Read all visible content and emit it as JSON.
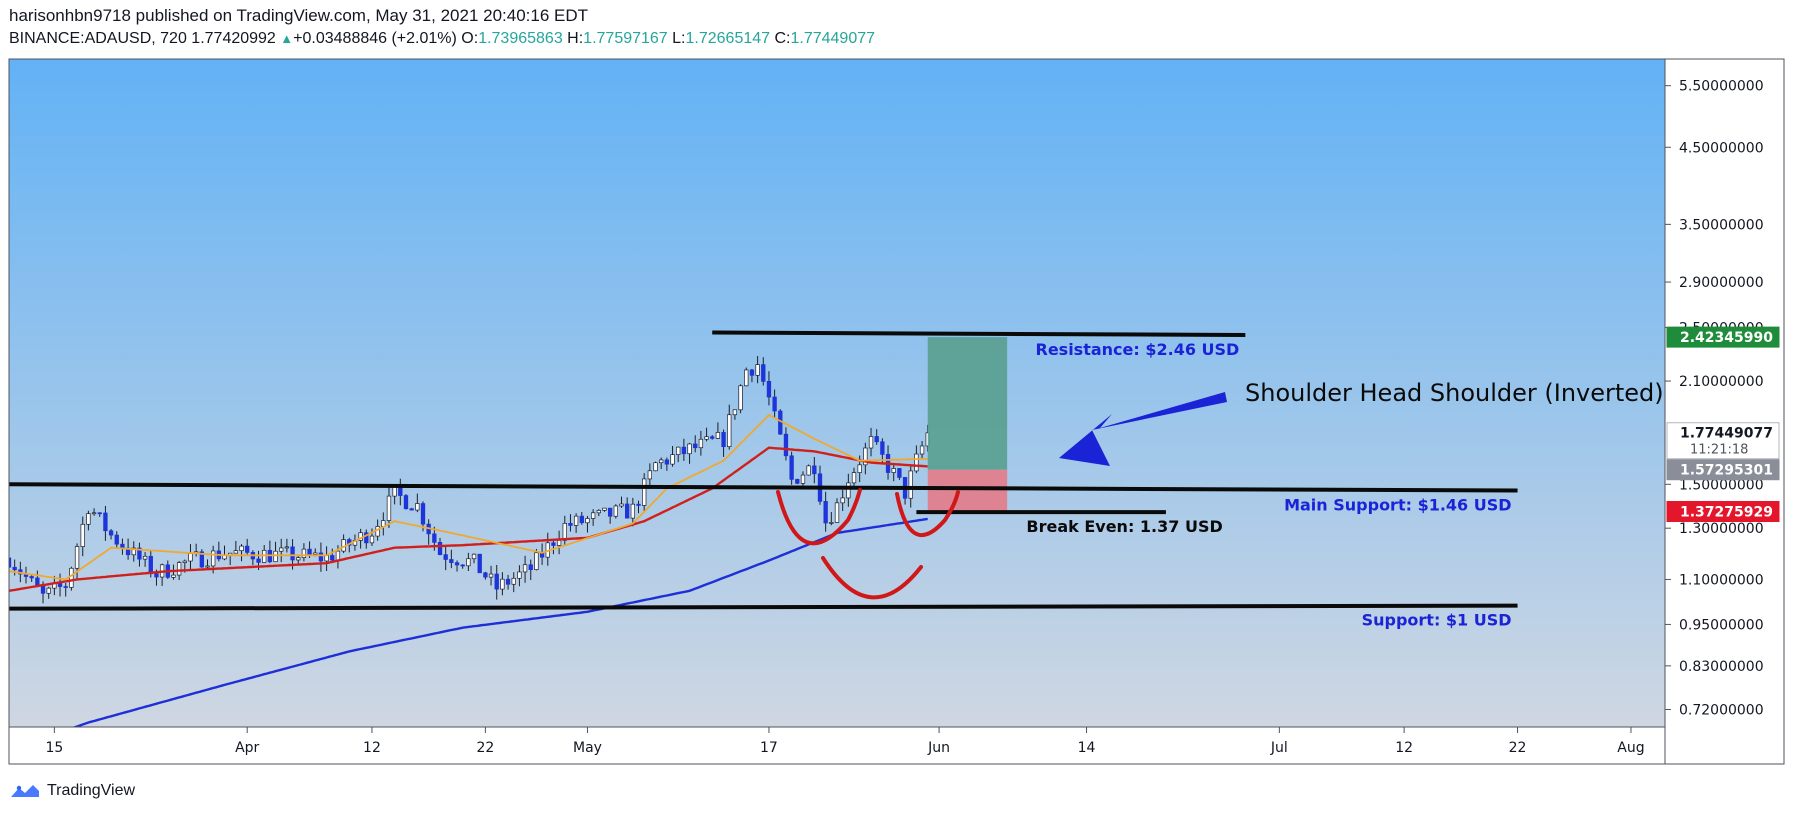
{
  "header": {
    "published_line": "harisonhbn9718 published on TradingView.com, May 31, 2021 20:40:16 EDT",
    "symbol": "BINANCE:ADAUSD, 720",
    "last": "1.77420992",
    "change_arrow": "▲",
    "change": "+0.03488846 (+2.01%)",
    "o_label": "O:",
    "o": "1.73965863",
    "h_label": "H:",
    "h": "1.77597167",
    "l_label": "L:",
    "l": "1.72665147",
    "c_label": "C:",
    "c": "1.77449077"
  },
  "footer": {
    "brand": "TradingView",
    "logo_icon": "tradingview-logo-icon"
  },
  "colors": {
    "bg_top": "#62b2f5",
    "bg_bottom": "#cfd7e2",
    "up_candle": "#ffffff",
    "down_candle": "#1e35d8",
    "ema_fast": "#f0a830",
    "ema_mid": "#d0201c",
    "ema_slow": "#1f2fd8",
    "zone_profit": "#5aa090",
    "zone_loss": "#e27d8a",
    "annot_blue": "#1a23d6",
    "neckline_red": "#d01818",
    "price_green": "#1e8c3a",
    "price_red": "#e3162b",
    "price_gray": "#8a8e98"
  },
  "chart_data": {
    "type": "candlestick",
    "symbol": "BINANCE:ADAUSD",
    "interval": "720",
    "y_scale": "log",
    "ylim": [
      0.68,
      6.0
    ],
    "x_range": [
      "2021-03-11",
      "2021-08-04"
    ],
    "y_ticks": [
      {
        "value": 5.5,
        "label": "5.50000000"
      },
      {
        "value": 4.5,
        "label": "4.50000000"
      },
      {
        "value": 3.5,
        "label": "3.50000000"
      },
      {
        "value": 2.9,
        "label": "2.90000000"
      },
      {
        "value": 2.5,
        "label": "2.50000000"
      },
      {
        "value": 2.1,
        "label": "2.10000000"
      },
      {
        "value": 1.5,
        "label": "1.50000000"
      },
      {
        "value": 1.3,
        "label": "1.30000000"
      },
      {
        "value": 1.1,
        "label": "1.10000000"
      },
      {
        "value": 0.95,
        "label": "0.95000000"
      },
      {
        "value": 0.83,
        "label": "0.83000000"
      },
      {
        "value": 0.72,
        "label": "0.72000000"
      }
    ],
    "x_ticks": [
      {
        "date": "2021-03-15",
        "label": "15"
      },
      {
        "date": "2021-04-01",
        "label": "Apr"
      },
      {
        "date": "2021-04-12",
        "label": "12"
      },
      {
        "date": "2021-04-22",
        "label": "22"
      },
      {
        "date": "2021-05-01",
        "label": "May"
      },
      {
        "date": "2021-05-17",
        "label": "17"
      },
      {
        "date": "2021-06-01",
        "label": "Jun"
      },
      {
        "date": "2021-06-14",
        "label": "14"
      },
      {
        "date": "2021-07-01",
        "label": "Jul"
      },
      {
        "date": "2021-07-12",
        "label": "12"
      },
      {
        "date": "2021-07-22",
        "label": "22"
      },
      {
        "date": "2021-08-01",
        "label": "Aug"
      }
    ],
    "price_labels": [
      {
        "value": 2.4234599,
        "label": "2.42345990",
        "style": "green"
      },
      {
        "value": 1.77449077,
        "label": "1.77449077",
        "sub": "11:21:18",
        "style": "white"
      },
      {
        "value": 1.57295301,
        "label": "1.57295301",
        "style": "gray"
      },
      {
        "value": 1.37275929,
        "label": "1.37275929",
        "style": "red"
      }
    ],
    "candle_anchors": [
      [
        "2021-03-11",
        1.18
      ],
      [
        "2021-03-14",
        1.04
      ],
      [
        "2021-03-16",
        1.08
      ],
      [
        "2021-03-18",
        1.4
      ],
      [
        "2021-03-20",
        1.27
      ],
      [
        "2021-03-24",
        1.12
      ],
      [
        "2021-03-27",
        1.17
      ],
      [
        "2021-03-30",
        1.2
      ],
      [
        "2021-04-05",
        1.19
      ],
      [
        "2021-04-08",
        1.18
      ],
      [
        "2021-04-12",
        1.29
      ],
      [
        "2021-04-14",
        1.45
      ],
      [
        "2021-04-16",
        1.4
      ],
      [
        "2021-04-18",
        1.2
      ],
      [
        "2021-04-21",
        1.16
      ],
      [
        "2021-04-23",
        1.07
      ],
      [
        "2021-04-26",
        1.14
      ],
      [
        "2021-04-29",
        1.31
      ],
      [
        "2021-05-03",
        1.36
      ],
      [
        "2021-05-05",
        1.38
      ],
      [
        "2021-05-07",
        1.6
      ],
      [
        "2021-05-10",
        1.68
      ],
      [
        "2021-05-13",
        1.74
      ],
      [
        "2021-05-15",
        2.18
      ],
      [
        "2021-05-16",
        2.22
      ],
      [
        "2021-05-17",
        1.98
      ],
      [
        "2021-05-19",
        1.52
      ],
      [
        "2021-05-21",
        1.6
      ],
      [
        "2021-05-22",
        1.33
      ],
      [
        "2021-05-23",
        1.4
      ],
      [
        "2021-05-24",
        1.53
      ],
      [
        "2021-05-26",
        1.72
      ],
      [
        "2021-05-28",
        1.55
      ],
      [
        "2021-05-29",
        1.46
      ],
      [
        "2021-05-30",
        1.62
      ],
      [
        "2021-05-31",
        1.77
      ]
    ],
    "ema_fast_anchors": [
      [
        "2021-03-11",
        1.13
      ],
      [
        "2021-03-16",
        1.1
      ],
      [
        "2021-03-20",
        1.22
      ],
      [
        "2021-03-30",
        1.19
      ],
      [
        "2021-04-08",
        1.19
      ],
      [
        "2021-04-14",
        1.33
      ],
      [
        "2021-04-19",
        1.28
      ],
      [
        "2021-04-27",
        1.2
      ],
      [
        "2021-05-05",
        1.32
      ],
      [
        "2021-05-08",
        1.48
      ],
      [
        "2021-05-13",
        1.62
      ],
      [
        "2021-05-17",
        1.88
      ],
      [
        "2021-05-21",
        1.74
      ],
      [
        "2021-05-25",
        1.62
      ],
      [
        "2021-05-31",
        1.63
      ]
    ],
    "ema_mid_anchors": [
      [
        "2021-03-11",
        1.06
      ],
      [
        "2021-03-17",
        1.1
      ],
      [
        "2021-03-25",
        1.13
      ],
      [
        "2021-04-08",
        1.16
      ],
      [
        "2021-04-14",
        1.22
      ],
      [
        "2021-04-20",
        1.23
      ],
      [
        "2021-05-01",
        1.26
      ],
      [
        "2021-05-06",
        1.33
      ],
      [
        "2021-05-12",
        1.48
      ],
      [
        "2021-05-17",
        1.69
      ],
      [
        "2021-05-21",
        1.67
      ],
      [
        "2021-05-26",
        1.61
      ],
      [
        "2021-05-31",
        1.59
      ]
    ],
    "ema_slow_anchors": [
      [
        "2021-03-11",
        0.63
      ],
      [
        "2021-03-18",
        0.69
      ],
      [
        "2021-03-30",
        0.78
      ],
      [
        "2021-04-10",
        0.87
      ],
      [
        "2021-04-20",
        0.94
      ],
      [
        "2021-05-01",
        0.99
      ],
      [
        "2021-05-10",
        1.06
      ],
      [
        "2021-05-17",
        1.17
      ],
      [
        "2021-05-23",
        1.28
      ],
      [
        "2021-05-31",
        1.34
      ]
    ],
    "lines": [
      {
        "from": [
          "2021-05-12",
          2.46
        ],
        "to": [
          "2021-06-28",
          2.44
        ],
        "label": "Resistance: $2.46 USD"
      },
      {
        "from": [
          "2021-03-11",
          1.5
        ],
        "to": [
          "2021-07-22",
          1.47
        ],
        "label": "Main Support: $1.46 USD"
      },
      {
        "from": [
          "2021-05-30",
          1.37
        ],
        "to": [
          "2021-06-21",
          1.37
        ],
        "label": "Break Even: 1.37 USD"
      },
      {
        "from": [
          "2021-03-11",
          1.0
        ],
        "to": [
          "2021-07-22",
          1.01
        ],
        "label": "Support: $1 USD"
      }
    ],
    "position": {
      "start": "2021-05-31",
      "end": "2021-06-07",
      "entry": 1.57295301,
      "target": 2.4234599,
      "stop": 1.37275929
    },
    "annotations": [
      {
        "type": "text",
        "label": "Shoulder Head Shoulder (Inverted)"
      },
      {
        "type": "arrow",
        "points_to": "position-zone"
      },
      {
        "type": "arc",
        "name": "left-shoulder"
      },
      {
        "type": "arc",
        "name": "head"
      },
      {
        "type": "arc",
        "name": "right-shoulder"
      }
    ]
  }
}
